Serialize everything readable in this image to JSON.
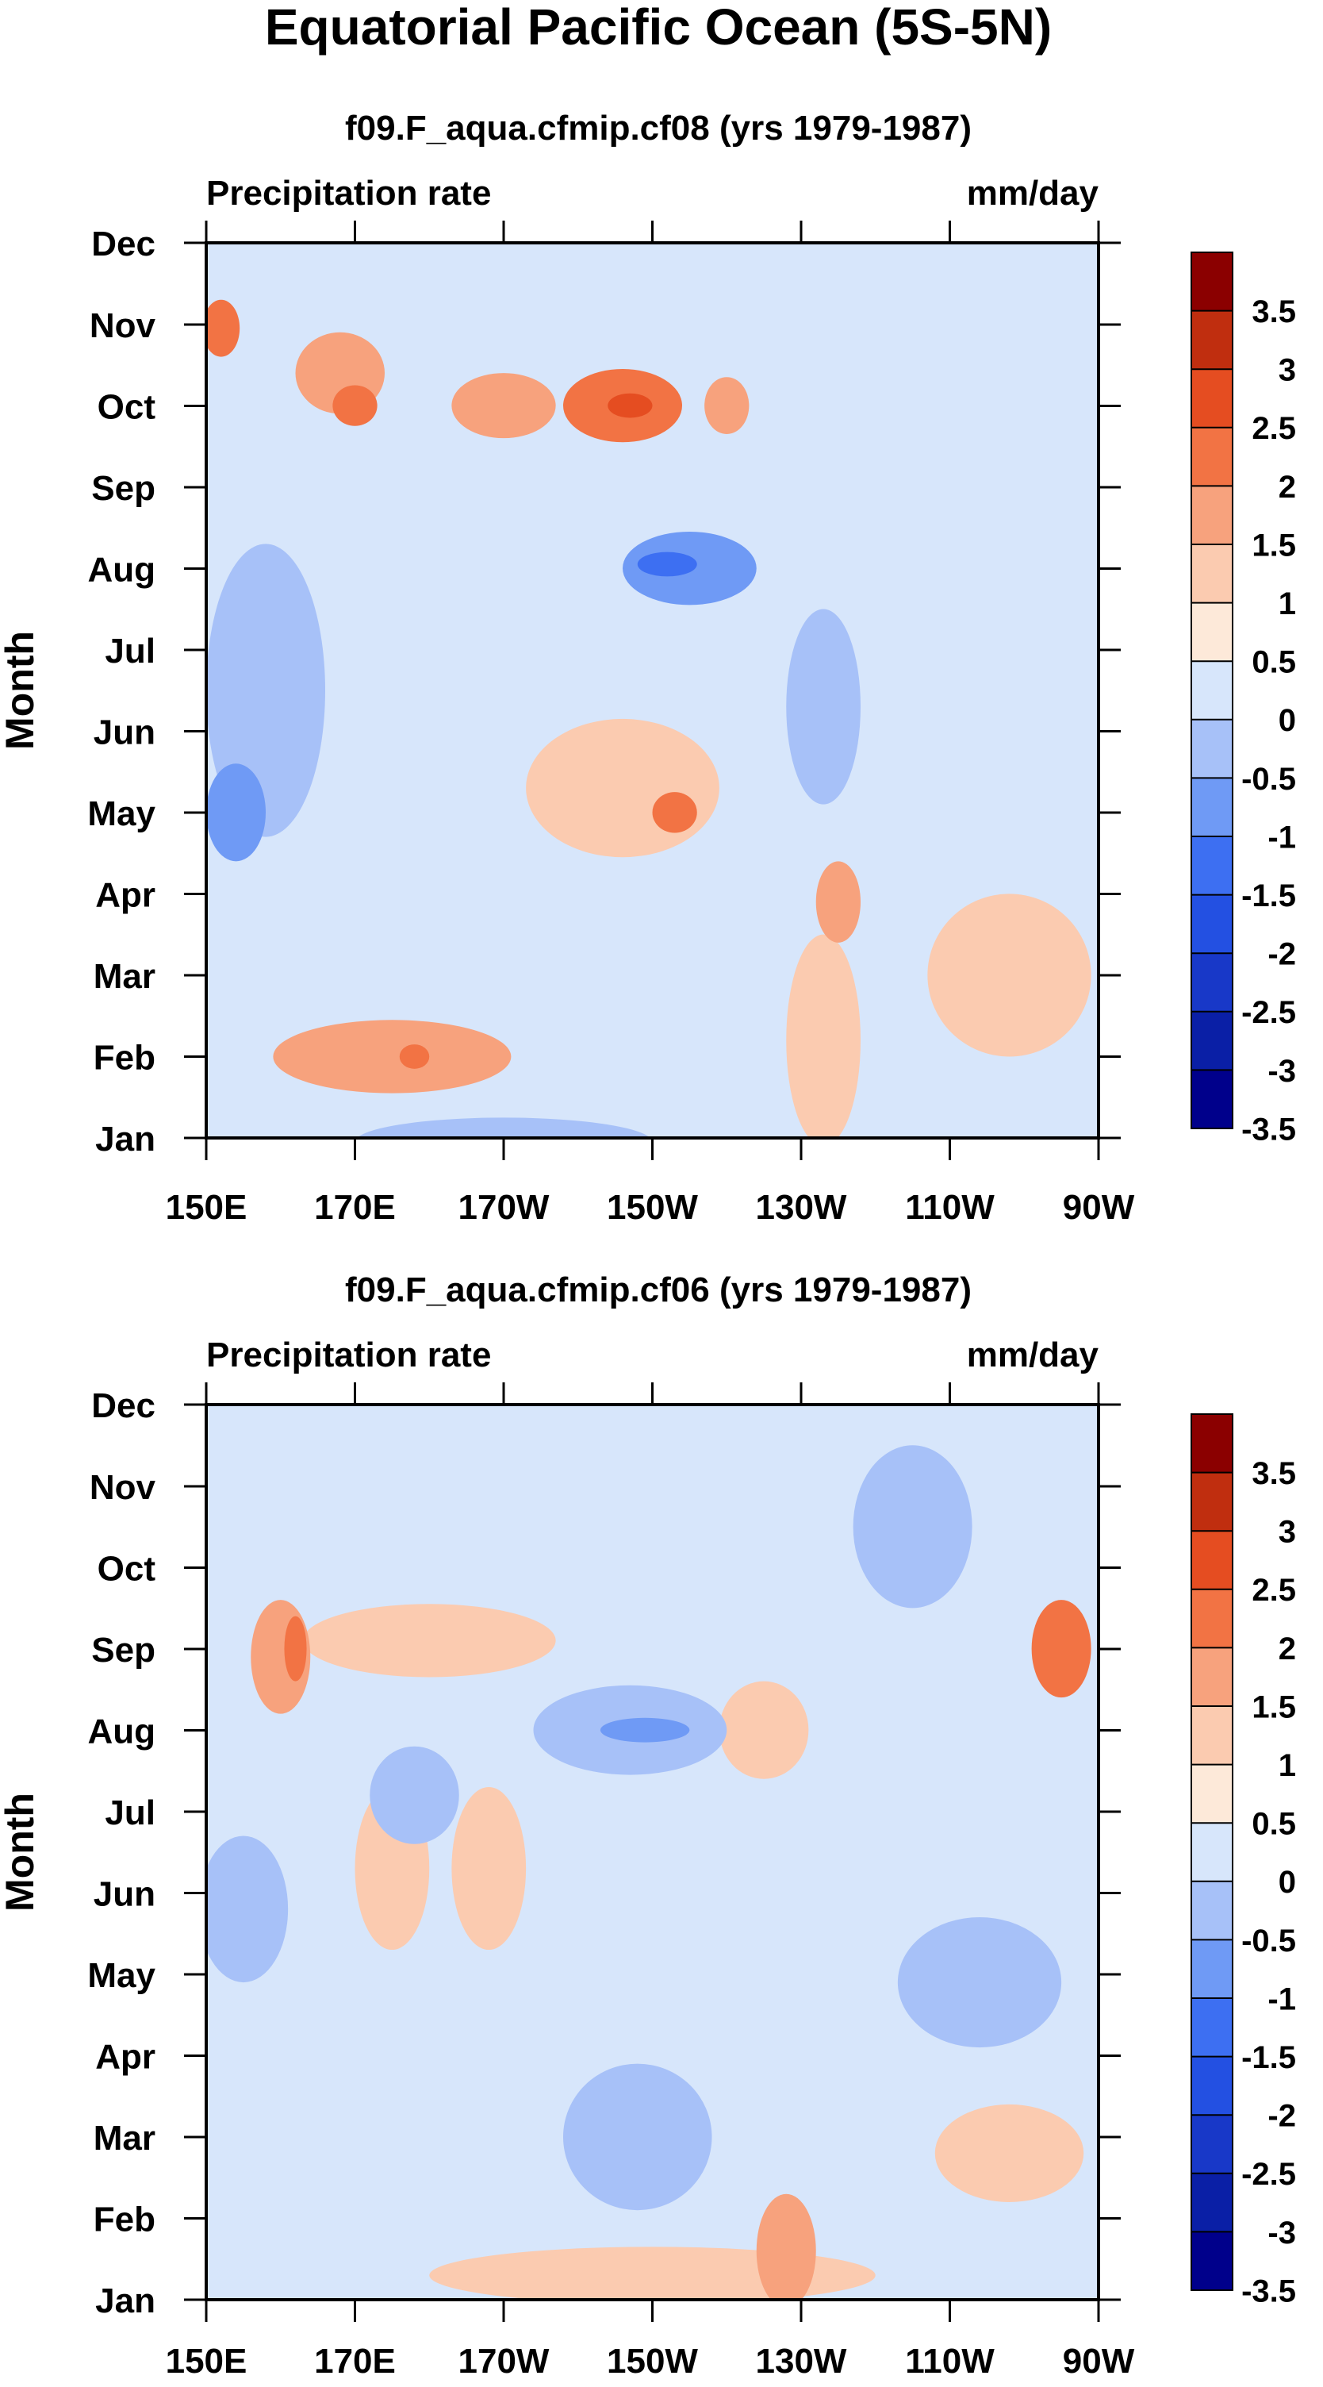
{
  "figure_title": "Equatorial Pacific Ocean (5S-5N)",
  "chart_data": [
    {
      "type": "heatmap",
      "title": "f09.F_aqua.cfmip.cf08 (yrs 1979-1987)",
      "left_label": "Precipitation rate",
      "right_label": "mm/day",
      "xlabel": "",
      "ylabel": "Month",
      "x_tick_labels": [
        "150E",
        "170E",
        "170W",
        "150W",
        "130W",
        "110W",
        "90W"
      ],
      "x_ticks_deg_east": [
        150,
        170,
        190,
        210,
        230,
        250,
        270
      ],
      "xlim_deg_east": [
        150,
        270
      ],
      "y_tick_labels": [
        "Jan",
        "Feb",
        "Mar",
        "Apr",
        "May",
        "Jun",
        "Jul",
        "Aug",
        "Sep",
        "Oct",
        "Nov",
        "Dec"
      ],
      "ylim_month": [
        1,
        12
      ],
      "colorbar_labels": [
        "3.5",
        "3",
        "2.5",
        "2",
        "1.5",
        "1",
        "0.5",
        "0",
        "-0.5",
        "-1",
        "-1.5",
        "-2",
        "-2.5",
        "-3",
        "-3.5"
      ],
      "features": [
        {
          "lon": 152,
          "month": 10.95,
          "value": 1.6,
          "rx": 2.5,
          "ry": 0.35
        },
        {
          "lon": 168,
          "month": 10.4,
          "value": 1.2,
          "rx": 6,
          "ry": 0.5
        },
        {
          "lon": 170,
          "month": 10.0,
          "value": 1.8,
          "rx": 3,
          "ry": 0.25
        },
        {
          "lon": 190,
          "month": 10.0,
          "value": 1.3,
          "rx": 7,
          "ry": 0.4
        },
        {
          "lon": 206,
          "month": 10.0,
          "value": 1.7,
          "rx": 8,
          "ry": 0.45
        },
        {
          "lon": 207,
          "month": 10.0,
          "value": 2.3,
          "rx": 3,
          "ry": 0.15
        },
        {
          "lon": 220,
          "month": 10.0,
          "value": 1.2,
          "rx": 3,
          "ry": 0.35
        },
        {
          "lon": 215,
          "month": 8.0,
          "value": -1.4,
          "rx": 9,
          "ry": 0.45
        },
        {
          "lon": 212,
          "month": 8.05,
          "value": -1.8,
          "rx": 4,
          "ry": 0.15
        },
        {
          "lon": 206,
          "month": 5.3,
          "value": 0.9,
          "rx": 13,
          "ry": 0.85
        },
        {
          "lon": 213,
          "month": 5.0,
          "value": 1.8,
          "rx": 3,
          "ry": 0.25
        },
        {
          "lon": 154,
          "month": 5.0,
          "value": -1.5,
          "rx": 4,
          "ry": 0.6
        },
        {
          "lon": 158,
          "month": 6.5,
          "value": -0.8,
          "rx": 8,
          "ry": 1.8
        },
        {
          "lon": 233,
          "month": 6.3,
          "value": -0.7,
          "rx": 5,
          "ry": 1.2
        },
        {
          "lon": 175,
          "month": 2.0,
          "value": 1.0,
          "rx": 16,
          "ry": 0.45
        },
        {
          "lon": 178,
          "month": 2.0,
          "value": 1.8,
          "rx": 2,
          "ry": 0.15
        },
        {
          "lon": 190,
          "month": 0.95,
          "value": -0.9,
          "rx": 20,
          "ry": 0.3
        },
        {
          "lon": 258,
          "month": 3.0,
          "value": 0.8,
          "rx": 11,
          "ry": 1.0
        },
        {
          "lon": 233,
          "month": 2.2,
          "value": 0.6,
          "rx": 5,
          "ry": 1.3
        },
        {
          "lon": 235,
          "month": 3.9,
          "value": 1.0,
          "rx": 3,
          "ry": 0.5
        }
      ]
    },
    {
      "type": "heatmap",
      "title": "f09.F_aqua.cfmip.cf06 (yrs 1979-1987)",
      "left_label": "Precipitation rate",
      "right_label": "mm/day",
      "xlabel": "",
      "ylabel": "Month",
      "x_tick_labels": [
        "150E",
        "170E",
        "170W",
        "150W",
        "130W",
        "110W",
        "90W"
      ],
      "x_ticks_deg_east": [
        150,
        170,
        190,
        210,
        230,
        250,
        270
      ],
      "xlim_deg_east": [
        150,
        270
      ],
      "y_tick_labels": [
        "Jan",
        "Feb",
        "Mar",
        "Apr",
        "May",
        "Jun",
        "Jul",
        "Aug",
        "Sep",
        "Oct",
        "Nov",
        "Dec"
      ],
      "ylim_month": [
        1,
        12
      ],
      "colorbar_labels": [
        "3.5",
        "3",
        "2.5",
        "2",
        "1.5",
        "1",
        "0.5",
        "0",
        "-0.5",
        "-1",
        "-1.5",
        "-2",
        "-2.5",
        "-3",
        "-3.5"
      ],
      "features": [
        {
          "lon": 180,
          "month": 9.1,
          "value": 0.9,
          "rx": 17,
          "ry": 0.45
        },
        {
          "lon": 160,
          "month": 8.9,
          "value": 1.3,
          "rx": 4,
          "ry": 0.7
        },
        {
          "lon": 162,
          "month": 9.0,
          "value": 1.6,
          "rx": 1.5,
          "ry": 0.4
        },
        {
          "lon": 265,
          "month": 9.0,
          "value": 1.5,
          "rx": 4,
          "ry": 0.6
        },
        {
          "lon": 207,
          "month": 8.0,
          "value": -0.9,
          "rx": 13,
          "ry": 0.55
        },
        {
          "lon": 209,
          "month": 8.0,
          "value": -1.5,
          "rx": 6,
          "ry": 0.15
        },
        {
          "lon": 178,
          "month": 7.2,
          "value": -0.8,
          "rx": 6,
          "ry": 0.6
        },
        {
          "lon": 245,
          "month": 10.5,
          "value": -0.8,
          "rx": 8,
          "ry": 1.0
        },
        {
          "lon": 254,
          "month": 4.9,
          "value": -0.9,
          "rx": 11,
          "ry": 0.8
        },
        {
          "lon": 208,
          "month": 3.0,
          "value": -0.8,
          "rx": 10,
          "ry": 0.9
        },
        {
          "lon": 155,
          "month": 5.8,
          "value": -0.7,
          "rx": 6,
          "ry": 0.9
        },
        {
          "lon": 210,
          "month": 1.3,
          "value": 0.9,
          "rx": 30,
          "ry": 0.35
        },
        {
          "lon": 228,
          "month": 1.6,
          "value": 1.3,
          "rx": 4,
          "ry": 0.7
        },
        {
          "lon": 175,
          "month": 6.3,
          "value": 0.6,
          "rx": 5,
          "ry": 1.0
        },
        {
          "lon": 188,
          "month": 6.3,
          "value": 0.6,
          "rx": 5,
          "ry": 1.0
        },
        {
          "lon": 258,
          "month": 2.8,
          "value": 0.7,
          "rx": 10,
          "ry": 0.6
        },
        {
          "lon": 225,
          "month": 8.0,
          "value": 0.7,
          "rx": 6,
          "ry": 0.6
        }
      ]
    }
  ],
  "colors": {
    "levels": [
      "#00008b",
      "#0a1fa6",
      "#1838c8",
      "#2350e2",
      "#3d6ff2",
      "#6f9af5",
      "#a7c1f8",
      "#d7e6fb",
      "#fde9d9",
      "#fbcbb0",
      "#f7a27d",
      "#f27344",
      "#e54d21",
      "#c02e0f",
      "#8b0000"
    ]
  }
}
